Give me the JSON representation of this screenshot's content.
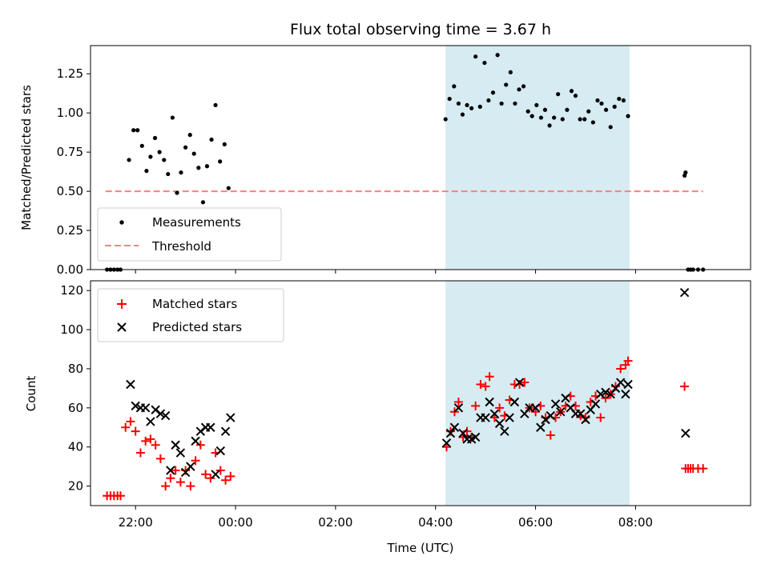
{
  "title": "Flux total observing time = 3.67 h",
  "xlabel": "Time (UTC)",
  "colors": {
    "highlight": "#add8e6",
    "threshold": "#ff0000",
    "matched": "#ff0000",
    "predicted": "#000000",
    "measurements": "#000000"
  },
  "chart_data": [
    {
      "type": "scatter",
      "panel": "top",
      "ylabel": "Matched/Predicted stars",
      "xlim": [
        -2.9,
        10.3
      ],
      "ylim": [
        0,
        1.43
      ],
      "yticks": [
        0,
        0.25,
        0.5,
        0.75,
        1.0,
        1.25
      ],
      "ytick_labels": [
        "0.00",
        "0.25",
        "0.50",
        "0.75",
        "1.00",
        "1.25"
      ],
      "legend": [
        "Measurements",
        "Threshold"
      ],
      "legend_position": "lower left",
      "highlight_span": [
        4.2,
        7.88
      ],
      "threshold": {
        "value": 0.5,
        "x_range": [
          -2.6,
          9.35
        ]
      },
      "series": [
        {
          "name": "Measurements",
          "marker": "dot",
          "x": [
            -2.57,
            -2.5,
            -2.43,
            -2.36,
            -2.3,
            -2.13,
            -2.04,
            -1.96,
            -1.87,
            -1.78,
            -1.7,
            -1.61,
            -1.52,
            -1.43,
            -1.35,
            -1.26,
            -1.17,
            -1.09,
            -1.0,
            -0.91,
            -0.83,
            -0.74,
            -0.65,
            -0.57,
            -0.48,
            -0.4,
            -0.31,
            -0.22,
            -0.14,
            4.2,
            4.28,
            4.37,
            4.46,
            4.54,
            4.63,
            4.72,
            4.8,
            4.89,
            4.98,
            5.06,
            5.15,
            5.24,
            5.32,
            5.41,
            5.5,
            5.59,
            5.67,
            5.76,
            5.85,
            5.93,
            6.02,
            6.11,
            6.19,
            6.28,
            6.37,
            6.45,
            6.54,
            6.63,
            6.72,
            6.8,
            6.89,
            6.98,
            7.06,
            7.15,
            7.24,
            7.32,
            7.41,
            7.5,
            7.58,
            7.67,
            7.76,
            7.85,
            8.98,
            9.0,
            9.05,
            9.1,
            9.15,
            9.25,
            9.35
          ],
          "y": [
            0,
            0,
            0,
            0,
            0,
            0.7,
            0.89,
            0.89,
            0.79,
            0.63,
            0.72,
            0.84,
            0.75,
            0.7,
            0.61,
            0.97,
            0.49,
            0.62,
            0.78,
            0.86,
            0.74,
            0.65,
            0.43,
            0.66,
            0.83,
            1.05,
            0.69,
            0.8,
            0.52,
            0.96,
            1.09,
            1.17,
            1.06,
            0.99,
            1.05,
            1.03,
            1.36,
            1.04,
            1.32,
            1.08,
            1.13,
            1.37,
            1.06,
            1.18,
            1.26,
            1.06,
            1.15,
            1.17,
            1.01,
            0.98,
            1.05,
            0.97,
            1.02,
            0.92,
            0.97,
            1.12,
            0.96,
            1.02,
            1.14,
            1.11,
            0.96,
            0.96,
            1.01,
            0.94,
            1.08,
            1.06,
            1.02,
            0.91,
            1.04,
            1.09,
            1.08,
            0.98,
            0.6,
            0.62,
            0,
            0,
            0,
            0,
            0
          ]
        }
      ]
    },
    {
      "type": "scatter",
      "panel": "bottom",
      "ylabel": "Count",
      "xlim": [
        -2.9,
        10.3
      ],
      "ylim": [
        10,
        125
      ],
      "yticks": [
        20,
        40,
        60,
        80,
        100,
        120
      ],
      "ytick_labels": [
        "20",
        "40",
        "60",
        "80",
        "100",
        "120"
      ],
      "xticks": [
        -2,
        0,
        2,
        4,
        6,
        8
      ],
      "xtick_labels": [
        "22:00",
        "00:00",
        "02:00",
        "04:00",
        "06:00",
        "08:00"
      ],
      "legend": [
        "Matched stars",
        "Predicted stars"
      ],
      "legend_position": "upper left",
      "highlight_span": [
        4.2,
        7.88
      ],
      "series": [
        {
          "name": "Matched stars",
          "marker": "plus",
          "x": [
            -2.57,
            -2.5,
            -2.43,
            -2.36,
            -2.3,
            -2.2,
            -2.1,
            -2.0,
            -1.9,
            -1.8,
            -1.7,
            -1.6,
            -1.5,
            -1.4,
            -1.3,
            -1.2,
            -1.1,
            -1.0,
            -0.9,
            -0.8,
            -0.7,
            -0.6,
            -0.5,
            -0.4,
            -0.3,
            -0.2,
            -0.1,
            4.22,
            4.3,
            4.38,
            4.46,
            4.55,
            4.63,
            4.72,
            4.8,
            4.9,
            5.0,
            5.08,
            5.18,
            5.28,
            5.38,
            5.48,
            5.58,
            5.68,
            5.78,
            5.88,
            6.0,
            6.1,
            6.2,
            6.3,
            6.4,
            6.5,
            6.6,
            6.7,
            6.8,
            6.9,
            7.0,
            7.1,
            7.2,
            7.3,
            7.4,
            7.5,
            7.6,
            7.7,
            7.8,
            7.85,
            8.98,
            9.0,
            9.05,
            9.1,
            9.15,
            9.25,
            9.35
          ],
          "y": [
            15,
            15,
            15,
            15,
            15,
            50,
            53,
            48,
            37,
            43,
            44,
            41,
            34,
            20,
            24,
            28,
            22,
            28,
            20,
            33,
            41,
            26,
            24,
            37,
            28,
            23,
            25,
            40,
            48,
            58,
            63,
            45,
            48,
            45,
            61,
            72,
            71,
            76,
            55,
            60,
            56,
            64,
            72,
            72,
            73,
            60,
            58,
            61,
            55,
            46,
            55,
            58,
            61,
            66,
            61,
            56,
            55,
            63,
            66,
            55,
            65,
            67,
            71,
            80,
            82,
            84,
            71,
            29,
            29,
            29,
            29,
            29,
            29
          ],
          "w": [
            15,
            15,
            15,
            15,
            15,
            50,
            53,
            48,
            37,
            43,
            44,
            41,
            34,
            20,
            24,
            28,
            22,
            28,
            20,
            33,
            41,
            26,
            24,
            37,
            28,
            23,
            25,
            40,
            48,
            58,
            63,
            45,
            48,
            45,
            61,
            72,
            71,
            76,
            55,
            60,
            56,
            64,
            72,
            72,
            73,
            60,
            58,
            61,
            55,
            46,
            55,
            58,
            61,
            66,
            61,
            56,
            55,
            63,
            66,
            55,
            65,
            67,
            71,
            80,
            82,
            84,
            71,
            29,
            29,
            29,
            29,
            29,
            29
          ]
        },
        {
          "name": "Predicted stars",
          "marker": "cross",
          "x": [
            -2.1,
            -2.0,
            -1.9,
            -1.8,
            -1.7,
            -1.6,
            -1.5,
            -1.4,
            -1.3,
            -1.2,
            -1.1,
            -1.0,
            -0.9,
            -0.8,
            -0.7,
            -0.6,
            -0.5,
            -0.4,
            -0.3,
            -0.2,
            -0.1,
            4.22,
            4.3,
            4.38,
            4.46,
            4.55,
            4.63,
            4.72,
            4.8,
            4.9,
            5.0,
            5.08,
            5.18,
            5.28,
            5.38,
            5.48,
            5.58,
            5.68,
            5.78,
            5.88,
            6.0,
            6.1,
            6.2,
            6.3,
            6.4,
            6.5,
            6.6,
            6.7,
            6.8,
            6.9,
            7.0,
            7.1,
            7.2,
            7.3,
            7.4,
            7.5,
            7.6,
            7.7,
            7.8,
            7.85,
            8.98,
            9.0
          ],
          "y": [
            72,
            61,
            60,
            60,
            53,
            59,
            57,
            56,
            28,
            41,
            37,
            27,
            30,
            43,
            48,
            50,
            50,
            26,
            38,
            48,
            55,
            42,
            47,
            50,
            60,
            47,
            44,
            44,
            45,
            55,
            55,
            63,
            57,
            52,
            48,
            55,
            63,
            73,
            57,
            60,
            60,
            50,
            54,
            56,
            62,
            58,
            65,
            60,
            57,
            57,
            54,
            59,
            62,
            67,
            68,
            67,
            70,
            73,
            67,
            72,
            119,
            47
          ]
        }
      ]
    }
  ]
}
